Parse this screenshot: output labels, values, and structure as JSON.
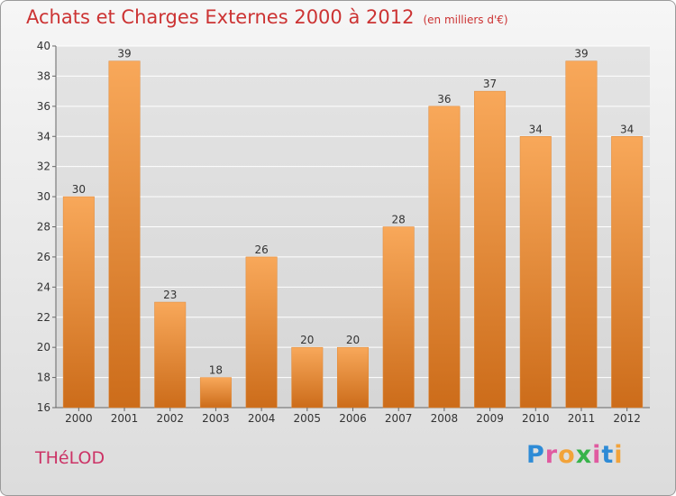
{
  "title": "Achats et Charges Externes 2000 à 2012",
  "unit": "(en milliers d'€)",
  "commune": "THéLOD",
  "logo": {
    "text": "Proxiti",
    "letter_colors": [
      "#2e8bd6",
      "#e05aa0",
      "#f2a33a",
      "#37b34a",
      "#e05aa0",
      "#2e8bd6",
      "#f2a33a"
    ]
  },
  "colors": {
    "title": "#cc3333",
    "bar_top": "#f8a85a",
    "bar_bottom": "#cc6c1a",
    "grid": "#ffffff",
    "axis_text": "#333333"
  },
  "chart_data": {
    "type": "bar",
    "title": "Achats et Charges Externes 2000 à 2012",
    "categories": [
      "2000",
      "2001",
      "2002",
      "2003",
      "2004",
      "2005",
      "2006",
      "2007",
      "2008",
      "2009",
      "2010",
      "2011",
      "2012"
    ],
    "values": [
      30,
      39,
      23,
      18,
      26,
      20,
      20,
      28,
      36,
      37,
      34,
      39,
      34
    ],
    "ylim": [
      16,
      40
    ],
    "yticks": [
      16,
      18,
      20,
      22,
      24,
      26,
      28,
      30,
      32,
      34,
      36,
      38,
      40
    ],
    "grid": true,
    "data_labels": true
  }
}
